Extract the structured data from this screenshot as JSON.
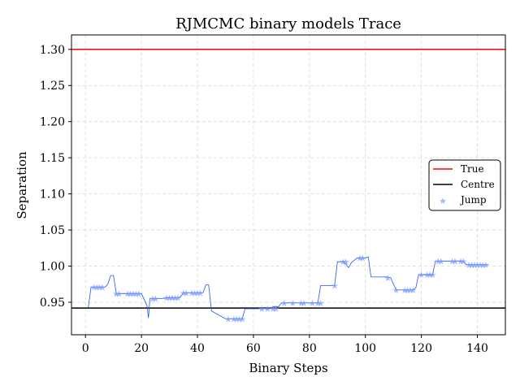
{
  "chart_data": {
    "type": "line",
    "title": "RJMCMC binary models Trace",
    "xlabel": "Binary Steps",
    "ylabel": "Separation",
    "xlim": [
      -5,
      150
    ],
    "ylim": [
      0.905,
      1.32
    ],
    "xticks": [
      0,
      20,
      40,
      60,
      80,
      100,
      120,
      140
    ],
    "yticks": [
      0.95,
      1.0,
      1.05,
      1.1,
      1.15,
      1.2,
      1.25,
      1.3
    ],
    "ytick_labels": [
      "0.95",
      "1.00",
      "1.05",
      "1.10",
      "1.15",
      "1.20",
      "1.25",
      "1.30"
    ],
    "grid": true,
    "legend_position": "center-right",
    "true_value": 1.3,
    "centre_value": 0.942,
    "colors": {
      "true": "#ff0000",
      "centre": "#000000",
      "trace": "#2255ee",
      "jump": "#7799ff"
    },
    "series": [
      {
        "name": "True",
        "kind": "hline"
      },
      {
        "name": "Centre",
        "kind": "hline"
      },
      {
        "name": "Jump",
        "kind": "markers"
      }
    ],
    "trace": {
      "x": [
        1,
        2,
        7,
        8,
        9,
        10,
        11,
        13,
        15,
        18,
        20,
        22,
        22.5,
        23,
        24,
        27,
        29,
        33,
        34,
        35,
        36,
        40,
        42,
        43,
        44,
        45,
        50,
        56,
        57,
        62,
        66,
        67,
        69,
        70,
        78,
        79,
        83,
        84,
        88,
        89,
        90,
        92,
        93,
        94,
        95,
        97,
        100,
        101,
        102,
        108,
        109,
        111,
        114,
        117,
        118,
        119,
        123,
        124,
        125,
        126,
        129,
        130,
        135,
        136,
        144
      ],
      "y": [
        0.943,
        0.971,
        0.971,
        0.975,
        0.987,
        0.987,
        0.962,
        0.962,
        0.962,
        0.962,
        0.962,
        0.945,
        0.928,
        0.955,
        0.955,
        0.955,
        0.956,
        0.956,
        0.958,
        0.963,
        0.963,
        0.963,
        0.963,
        0.974,
        0.974,
        0.938,
        0.927,
        0.927,
        0.941,
        0.941,
        0.941,
        0.944,
        0.944,
        0.949,
        0.949,
        0.949,
        0.949,
        0.973,
        0.973,
        0.973,
        1.006,
        1.006,
        1.003,
        0.998,
        1.005,
        1.011,
        1.011,
        1.013,
        0.985,
        0.985,
        0.984,
        0.967,
        0.967,
        0.967,
        0.97,
        0.988,
        0.988,
        0.988,
        1.007,
        1.007,
        1.007,
        1.007,
        1.007,
        1.002,
        1.002
      ]
    },
    "jumps": {
      "x": [
        3,
        4,
        5,
        6,
        11,
        12,
        15,
        16,
        17,
        18,
        19,
        24,
        25,
        29,
        30,
        31,
        32,
        33,
        35,
        36,
        38,
        39,
        40,
        41,
        51,
        53,
        54,
        55,
        56,
        63,
        65,
        67,
        68,
        71,
        74,
        77,
        78,
        81,
        83,
        84,
        89,
        92,
        93,
        98,
        99,
        108,
        111,
        114,
        115,
        116,
        117,
        120,
        122,
        123,
        124,
        126,
        127,
        131,
        132,
        134,
        135,
        137,
        138,
        139,
        140,
        141,
        142,
        143
      ],
      "y": [
        0.971,
        0.971,
        0.971,
        0.971,
        0.962,
        0.962,
        0.962,
        0.962,
        0.962,
        0.962,
        0.962,
        0.955,
        0.955,
        0.956,
        0.956,
        0.956,
        0.956,
        0.956,
        0.963,
        0.963,
        0.963,
        0.963,
        0.963,
        0.963,
        0.927,
        0.927,
        0.927,
        0.927,
        0.927,
        0.941,
        0.941,
        0.941,
        0.941,
        0.949,
        0.949,
        0.949,
        0.949,
        0.949,
        0.949,
        0.949,
        0.973,
        1.006,
        1.006,
        1.011,
        1.011,
        0.984,
        0.967,
        0.967,
        0.967,
        0.967,
        0.967,
        0.988,
        0.988,
        0.988,
        0.988,
        1.007,
        1.007,
        1.007,
        1.007,
        1.007,
        1.007,
        1.002,
        1.002,
        1.002,
        1.002,
        1.002,
        1.002,
        1.002
      ]
    }
  }
}
